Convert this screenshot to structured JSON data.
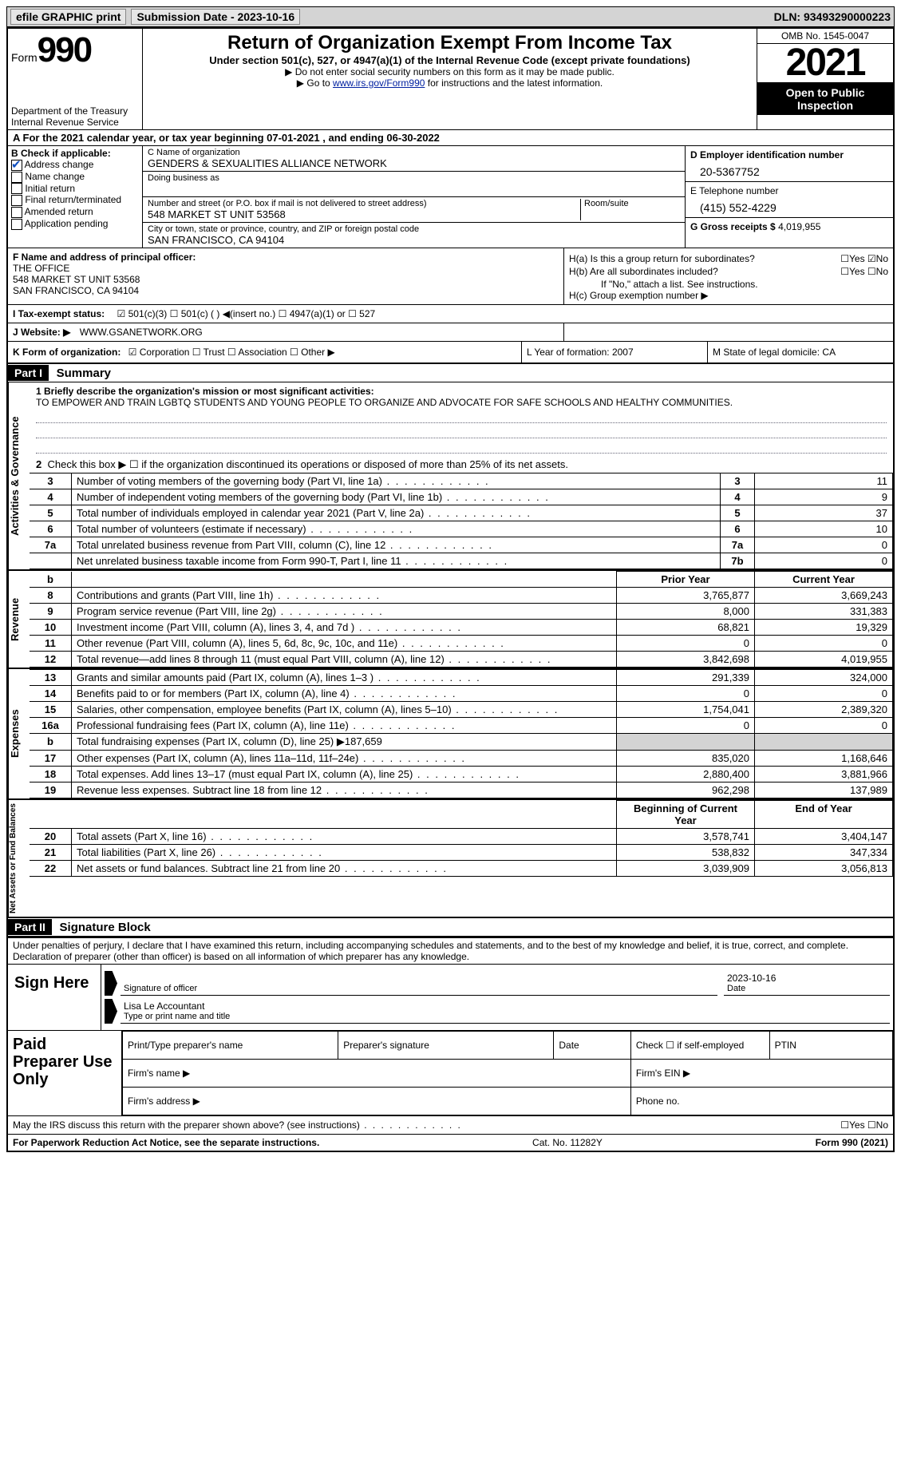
{
  "topbar": {
    "efile": "efile GRAPHIC print",
    "submission": "Submission Date - 2023-10-16",
    "dln": "DLN: 93493290000223"
  },
  "header": {
    "form_word": "Form",
    "form_num": "990",
    "title": "Return of Organization Exempt From Income Tax",
    "subtitle": "Under section 501(c), 527, or 4947(a)(1) of the Internal Revenue Code (except private foundations)",
    "note1": "▶ Do not enter social security numbers on this form as it may be made public.",
    "note2_pre": "▶ Go to ",
    "note2_link": "www.irs.gov/Form990",
    "note2_post": " for instructions and the latest information.",
    "dept": "Department of the Treasury Internal Revenue Service",
    "omb": "OMB No. 1545-0047",
    "year": "2021",
    "open": "Open to Public Inspection"
  },
  "row_a": "A For the 2021 calendar year, or tax year beginning 07-01-2021    , and ending 06-30-2022",
  "col_b": {
    "label": "B Check if applicable:",
    "addr": "Address change",
    "name": "Name change",
    "init": "Initial return",
    "final": "Final return/terminated",
    "amend": "Amended return",
    "app": "Application pending"
  },
  "col_c": {
    "name_lbl": "C Name of organization",
    "name": "GENDERS & SEXUALITIES ALLIANCE NETWORK",
    "dba_lbl": "Doing business as",
    "addr_lbl": "Number and street (or P.O. box if mail is not delivered to street address)",
    "room_lbl": "Room/suite",
    "addr": "548 MARKET ST UNIT 53568",
    "city_lbl": "City or town, state or province, country, and ZIP or foreign postal code",
    "city": "SAN FRANCISCO, CA  94104"
  },
  "col_d": {
    "ein_lbl": "D Employer identification number",
    "ein": "20-5367752",
    "tel_lbl": "E Telephone number",
    "tel": "(415) 552-4229",
    "gross_lbl": "G Gross receipts $",
    "gross": "4,019,955"
  },
  "section_f": {
    "lbl": "F Name and address of principal officer:",
    "name": "THE OFFICE",
    "addr1": "548 MARKET ST UNIT 53568",
    "addr2": "SAN FRANCISCO, CA  94104"
  },
  "section_h": {
    "ha": "H(a)  Is this a group return for subordinates?",
    "ha_yn": "☐Yes ☑No",
    "hb": "H(b)  Are all subordinates included?",
    "hb_yn": "☐Yes ☐No",
    "hb_note": "If \"No,\" attach a list. See instructions.",
    "hc": "H(c)  Group exemption number ▶"
  },
  "row_i": {
    "label": "I  Tax-exempt status:",
    "opts": "☑ 501(c)(3)    ☐ 501(c) (  ) ◀(insert no.)    ☐ 4947(a)(1) or   ☐ 527"
  },
  "row_j": {
    "label": "J  Website: ▶",
    "val": "WWW.GSANETWORK.ORG"
  },
  "row_k": {
    "k1_lbl": "K Form of organization:",
    "k1_val": "☑ Corporation  ☐ Trust  ☐ Association  ☐ Other ▶",
    "k2": "L Year of formation: 2007",
    "k3": "M State of legal domicile: CA"
  },
  "part1": {
    "hdr": "Part I",
    "title": "Summary"
  },
  "mission": {
    "lbl": "1   Briefly describe the organization's mission or most significant activities:",
    "text": "TO EMPOWER AND TRAIN LGBTQ STUDENTS AND YOUNG PEOPLE TO ORGANIZE AND ADVOCATE FOR SAFE SCHOOLS AND HEALTHY COMMUNITIES."
  },
  "line2": "Check this box ▶ ☐  if the organization discontinued its operations or disposed of more than 25% of its net assets.",
  "sides": {
    "ag": "Activities & Governance",
    "rev": "Revenue",
    "exp": "Expenses",
    "na": "Net Assets or Fund Balances"
  },
  "gov_rows": [
    {
      "n": "3",
      "d": "Number of voting members of the governing body (Part VI, line 1a)",
      "b": "3",
      "v": "11"
    },
    {
      "n": "4",
      "d": "Number of independent voting members of the governing body (Part VI, line 1b)",
      "b": "4",
      "v": "9"
    },
    {
      "n": "5",
      "d": "Total number of individuals employed in calendar year 2021 (Part V, line 2a)",
      "b": "5",
      "v": "37"
    },
    {
      "n": "6",
      "d": "Total number of volunteers (estimate if necessary)",
      "b": "6",
      "v": "10"
    },
    {
      "n": "7a",
      "d": "Total unrelated business revenue from Part VIII, column (C), line 12",
      "b": "7a",
      "v": "0"
    },
    {
      "n": "",
      "d": "Net unrelated business taxable income from Form 990-T, Part I, line 11",
      "b": "7b",
      "v": "0"
    }
  ],
  "col_hdr": {
    "py": "Prior Year",
    "cy": "Current Year"
  },
  "rev_rows": [
    {
      "n": "8",
      "d": "Contributions and grants (Part VIII, line 1h)",
      "py": "3,765,877",
      "cy": "3,669,243"
    },
    {
      "n": "9",
      "d": "Program service revenue (Part VIII, line 2g)",
      "py": "8,000",
      "cy": "331,383"
    },
    {
      "n": "10",
      "d": "Investment income (Part VIII, column (A), lines 3, 4, and 7d )",
      "py": "68,821",
      "cy": "19,329"
    },
    {
      "n": "11",
      "d": "Other revenue (Part VIII, column (A), lines 5, 6d, 8c, 9c, 10c, and 11e)",
      "py": "0",
      "cy": "0"
    },
    {
      "n": "12",
      "d": "Total revenue—add lines 8 through 11 (must equal Part VIII, column (A), line 12)",
      "py": "3,842,698",
      "cy": "4,019,955"
    }
  ],
  "exp_rows": [
    {
      "n": "13",
      "d": "Grants and similar amounts paid (Part IX, column (A), lines 1–3 )",
      "py": "291,339",
      "cy": "324,000"
    },
    {
      "n": "14",
      "d": "Benefits paid to or for members (Part IX, column (A), line 4)",
      "py": "0",
      "cy": "0"
    },
    {
      "n": "15",
      "d": "Salaries, other compensation, employee benefits (Part IX, column (A), lines 5–10)",
      "py": "1,754,041",
      "cy": "2,389,320"
    },
    {
      "n": "16a",
      "d": "Professional fundraising fees (Part IX, column (A), line 11e)",
      "py": "0",
      "cy": "0"
    },
    {
      "n": "b",
      "d": "Total fundraising expenses (Part IX, column (D), line 25) ▶187,659",
      "py": "",
      "cy": "",
      "shade": true
    },
    {
      "n": "17",
      "d": "Other expenses (Part IX, column (A), lines 11a–11d, 11f–24e)",
      "py": "835,020",
      "cy": "1,168,646"
    },
    {
      "n": "18",
      "d": "Total expenses. Add lines 13–17 (must equal Part IX, column (A), line 25)",
      "py": "2,880,400",
      "cy": "3,881,966"
    },
    {
      "n": "19",
      "d": "Revenue less expenses. Subtract line 18 from line 12",
      "py": "962,298",
      "cy": "137,989"
    }
  ],
  "na_hdr": {
    "b": "Beginning of Current Year",
    "e": "End of Year"
  },
  "na_rows": [
    {
      "n": "20",
      "d": "Total assets (Part X, line 16)",
      "py": "3,578,741",
      "cy": "3,404,147"
    },
    {
      "n": "21",
      "d": "Total liabilities (Part X, line 26)",
      "py": "538,832",
      "cy": "347,334"
    },
    {
      "n": "22",
      "d": "Net assets or fund balances. Subtract line 21 from line 20",
      "py": "3,039,909",
      "cy": "3,056,813"
    }
  ],
  "part2": {
    "hdr": "Part II",
    "title": "Signature Block"
  },
  "sig_text": "Under penalties of perjury, I declare that I have examined this return, including accompanying schedules and statements, and to the best of my knowledge and belief, it is true, correct, and complete. Declaration of preparer (other than officer) is based on all information of which preparer has any knowledge.",
  "sign_here": "Sign Here",
  "sig_officer_lbl": "Signature of officer",
  "sig_date": "2023-10-16",
  "sig_date_lbl": "Date",
  "sig_name": "Lisa Le  Accountant",
  "sig_name_lbl": "Type or print name and title",
  "paid_prep": "Paid Preparer Use Only",
  "prep": {
    "c1": "Print/Type preparer's name",
    "c2": "Preparer's signature",
    "c3": "Date",
    "c4": "Check ☐ if self-employed",
    "c5": "PTIN",
    "firm_name": "Firm's name    ▶",
    "firm_ein": "Firm's EIN ▶",
    "firm_addr": "Firm's address ▶",
    "phone": "Phone no."
  },
  "discuss": "May the IRS discuss this return with the preparer shown above? (see instructions)",
  "discuss_yn": "☐Yes  ☐No",
  "footer": {
    "left": "For Paperwork Reduction Act Notice, see the separate instructions.",
    "mid": "Cat. No. 11282Y",
    "right": "Form 990 (2021)"
  }
}
